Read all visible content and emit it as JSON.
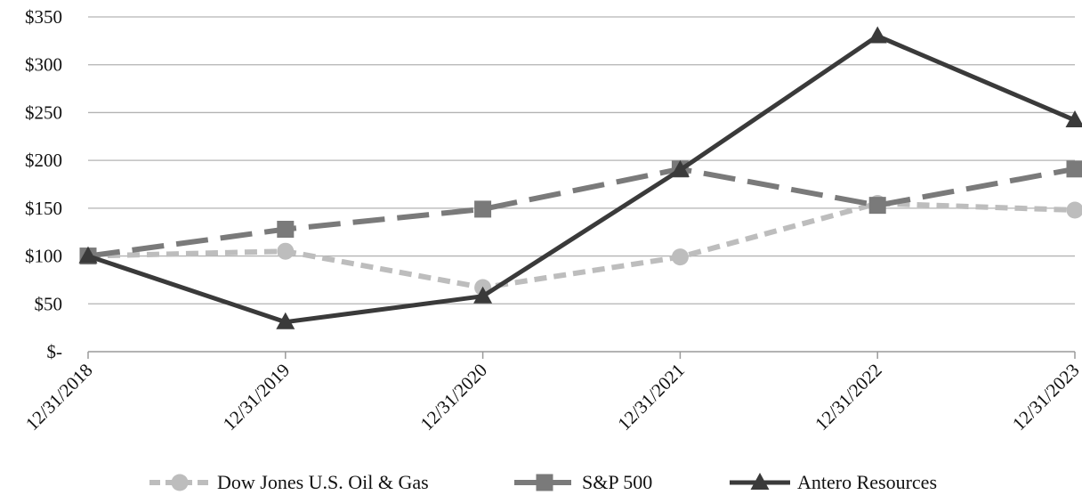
{
  "chart_data": {
    "type": "line",
    "title": "",
    "xlabel": "",
    "ylabel": "",
    "categories": [
      "12/31/2018",
      "12/31/2019",
      "12/31/2020",
      "12/31/2021",
      "12/31/2022",
      "12/31/2023"
    ],
    "y_ticks": [
      "$-",
      "$50",
      "$100",
      "$150",
      "$200",
      "$250",
      "$300",
      "$350"
    ],
    "ylim": [
      0,
      350
    ],
    "grid": "horizontal",
    "legend_position": "bottom",
    "series": [
      {
        "name": "Dow Jones U.S. Oil & Gas",
        "values": [
          100,
          105,
          67,
          99,
          155,
          148
        ],
        "color": "#bdbdbd",
        "style": "short-dash",
        "marker": "circle"
      },
      {
        "name": "S&P 500",
        "values": [
          100,
          128,
          149,
          191,
          153,
          191
        ],
        "color": "#7a7a7a",
        "style": "long-dash",
        "marker": "square"
      },
      {
        "name": "Antero Resources",
        "values": [
          100,
          31,
          58,
          190,
          330,
          242
        ],
        "color": "#3a3a3a",
        "style": "solid",
        "marker": "triangle"
      }
    ]
  }
}
